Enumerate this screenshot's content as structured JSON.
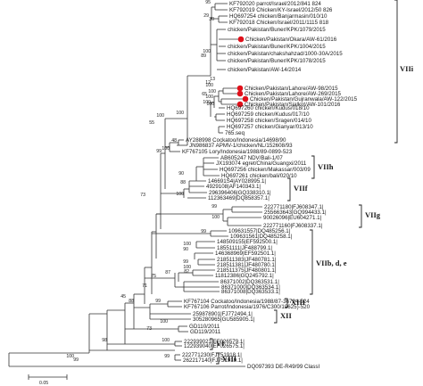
{
  "tree": {
    "leaves": [
      "KF792020 parrot/Israel/2012/841 824",
      "KF792019 Chicken/KY-Israel/2012/50 826",
      "HQ697254 chicken/Banjarmasin/010/10",
      "KF792018 Chicken/Israel/2011/1115 818",
      "chicken/Pakistan/Buner/KPK/1079/2015",
      "Chicken/Pakistan/Okara/AW-61/2016",
      "chicken/Pakistan/Buner/KPK/1004/2015",
      "chicken/Pakistan/chakshahzad/1000-30A/2015",
      "chicken/Pakistan/Buner/KPK/1078/2015",
      "chicken/Pakistan/AW-14/2014",
      "Chicken/Pakistan/Lahore/AW-98/2015",
      "Chicken/Pakistan/Lahore/AW-269/2015",
      "Chicken/Pakistan/Gujranwala/AW-122/2015",
      "Chicken/Pakistan/Sialkot/AW-101/2016",
      "HQ697260 chicken/Kudus/018/10",
      "HQ697259 chicken/Kudus/017/10",
      "HQ697258 chicken/Sragen/014/10",
      "HQ697257 chicken/Gianyar/013/10",
      "765.seq",
      "AY288998 Cockatoo/Indonesia/14698/90",
      "JN986837 APMV-1/chicken/NL/152608/93",
      "KF767105 Lory/Indonesia/1988/89-0899-523",
      "AB605247 NDV/Bali-1/07",
      "JX193074 egret/China/Guangxi/2011",
      "HQ697256 chicken/Makassar/003/09",
      "HQ697261 chicken/bali/020/10",
      "146691S4|AY028995.1|",
      "4929108|AF140343.1|",
      "296396406|GQ338310.1|",
      "112363469|DQ858357.1|",
      "222771180|FJ608347.1|",
      "255663643|GQ994433.1|",
      "90026096|EU604271.1|",
      "222771160|FJ608337.1|",
      "109631557|DQ485256.1|",
      "109631561|DQ485258.1|",
      "148509155|EF592500.1|",
      "18551111|JF488799.1|",
      "146368969|EF592501.1|",
      "218511383|JF480781.1|",
      "218511381|JF480780.1|",
      "218511375|JF480801.1|",
      "11812386|GQ245792.1|",
      "86371002|DQ363531.1|",
      "86371000|DQ363534.1|",
      "86371008|DQ363533.1|",
      "KF767104 Cockatoo/Indonesia/1988/87-36724-524",
      "KF767106 Parrot/Indonesia/1976/C300/19625)-520",
      "259878901|FJ772494.1|",
      "305280965|GU585905.1|",
      "GD110/2011",
      "GD119/2011",
      "222939021|EF026579.1|",
      "122939040|EF026575.1|",
      "222771230|FJ751918.1|",
      "262217140|FJ751919.1|",
      "DQ097393 DE-R49/99 ClassI"
    ],
    "bootstrap": [
      "95",
      "30",
      "29",
      "100",
      "89",
      "13",
      "12",
      "100",
      "100",
      "100",
      "100",
      "100",
      "65",
      "100",
      "100",
      "55",
      "48",
      "100",
      "99",
      "90",
      "73",
      "88",
      "100",
      "99",
      "100",
      "99",
      "100",
      "90",
      "99",
      "100",
      "82",
      "87",
      "75",
      "71",
      "45",
      "99",
      "88",
      "100",
      "73",
      "100",
      "98",
      "99",
      "100",
      "99"
    ],
    "genotypes": [
      "VIIi",
      "VIIh",
      "VIIf",
      "VIIg",
      "VIIb, d, e",
      "XIII",
      "XII",
      "VI",
      "VIII"
    ],
    "scale_label": "0.05"
  }
}
